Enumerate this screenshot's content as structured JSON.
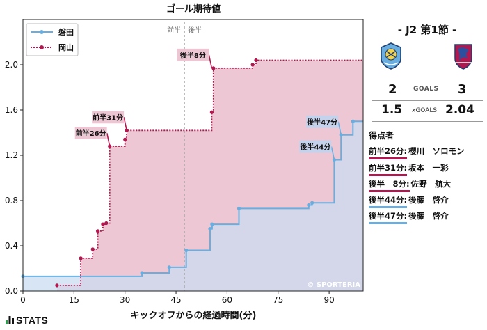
{
  "chart_data": {
    "type": "line",
    "title": "ゴール期待値",
    "xlabel": "キックオフからの経過時間(分)",
    "ylabel": "",
    "xlim": [
      0,
      100
    ],
    "ylim": [
      0,
      2.4
    ],
    "xticks": [
      0,
      15,
      30,
      45,
      60,
      75,
      90
    ],
    "xtick_labels": [
      "0",
      "15",
      "30",
      "45",
      "60",
      "75",
      "90"
    ],
    "yticks": [
      0.0,
      0.4,
      0.8,
      1.2,
      1.6,
      2.0
    ],
    "ytick_labels": [
      "0.0",
      "0.4",
      "0.8",
      "1.2",
      "1.6",
      "2.0"
    ],
    "grid": false,
    "legend_position": "top-left",
    "halftime_minute": 47.5,
    "half_labels": [
      "前半",
      "後半"
    ],
    "watermark": "© SPORTERIA",
    "series": [
      {
        "name": "磐田",
        "color": "#6aaee0",
        "fill": "#c9dcf0",
        "points": [
          [
            0,
            0.13
          ],
          [
            35,
            0.16
          ],
          [
            43,
            0.21
          ],
          [
            48,
            0.36
          ],
          [
            55,
            0.55
          ],
          [
            55.6,
            0.59
          ],
          [
            63.5,
            0.73
          ],
          [
            84,
            0.76
          ],
          [
            85,
            0.78
          ],
          [
            91.5,
            1.16
          ],
          [
            93.5,
            1.38
          ],
          [
            97,
            1.5
          ],
          [
            100,
            1.5
          ]
        ]
      },
      {
        "name": "岡山",
        "color": "#b0184f",
        "fill": "#e9b9c9",
        "points": [
          [
            10,
            0.05
          ],
          [
            17,
            0.29
          ],
          [
            20.5,
            0.37
          ],
          [
            22,
            0.53
          ],
          [
            23.5,
            0.59
          ],
          [
            24.5,
            0.6
          ],
          [
            25.5,
            1.28
          ],
          [
            30,
            1.34
          ],
          [
            30.5,
            1.42
          ],
          [
            55.5,
            1.58
          ],
          [
            56,
            1.97
          ],
          [
            67.5,
            2.0
          ],
          [
            68.5,
            2.04
          ],
          [
            100,
            2.04
          ]
        ]
      }
    ],
    "annotations": [
      {
        "text": "前半26分",
        "x": 25.5,
        "y": 1.28,
        "team": "岡山"
      },
      {
        "text": "前半31分",
        "x": 30.5,
        "y": 1.42,
        "team": "岡山"
      },
      {
        "text": "後半8分",
        "x": 55.5,
        "y": 1.97,
        "team": "岡山"
      },
      {
        "text": "後半44分",
        "x": 91.5,
        "y": 1.16,
        "team": "磐田"
      },
      {
        "text": "後半47分",
        "x": 93.5,
        "y": 1.38,
        "team": "磐田"
      }
    ]
  },
  "panel": {
    "round": "- J2 第1節 -",
    "home_score": "2",
    "away_score": "3",
    "goals_label": "GOALS",
    "home_xg": "1.5",
    "away_xg": "2.04",
    "xg_label": "xGOALS",
    "scorers_title": "得点者",
    "scorers": [
      {
        "time": "前半26分:",
        "name": "櫻川　ソロモン",
        "color": "#b0184f"
      },
      {
        "time": "前半31分:",
        "name": "坂本　一彩",
        "color": "#b0184f"
      },
      {
        "time": "後半　8分:",
        "name": "佐野　航大",
        "color": "#b0184f"
      },
      {
        "time": "後半44分:",
        "name": "後藤　啓介",
        "color": "#6aaee0"
      },
      {
        "time": "後半47分:",
        "name": "後藤　啓介",
        "color": "#6aaee0"
      }
    ]
  },
  "footer": {
    "brand": "STATS"
  }
}
